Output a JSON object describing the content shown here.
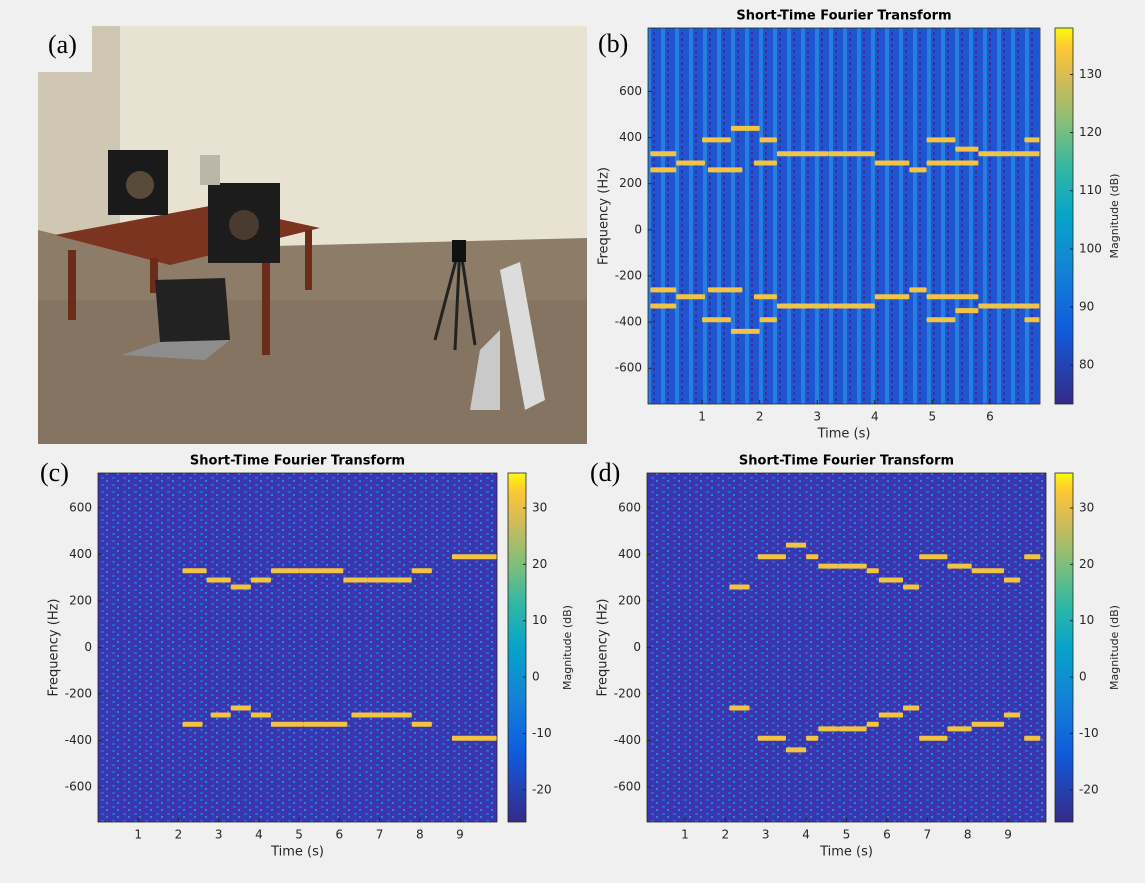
{
  "figure": {
    "panel_a": {
      "label": "(a)"
    }
  },
  "chart_data": [
    {
      "type": "spectrogram",
      "label": "(b)",
      "title": "Short-Time Fourier Transform",
      "xlabel": "Time (s)",
      "ylabel": "Frequency (Hz)",
      "xlim": [
        0.06,
        6.87
      ],
      "ylim": [
        -755,
        875
      ],
      "xticks": [
        1,
        2,
        3,
        4,
        5,
        6
      ],
      "yticks": [
        -600,
        -400,
        -200,
        0,
        200,
        400,
        600
      ],
      "colorbar": {
        "label": "Magnitude (dB)",
        "clim": [
          73.3,
          138
        ],
        "ticks": [
          80,
          90,
          100,
          110,
          120,
          130
        ]
      },
      "tones": [
        [
          0.1,
          0.55,
          330
        ],
        [
          0.1,
          0.55,
          260
        ],
        [
          0.55,
          1.05,
          290
        ],
        [
          1.0,
          1.5,
          390
        ],
        [
          1.5,
          2.0,
          440
        ],
        [
          1.1,
          1.7,
          260
        ],
        [
          1.9,
          2.3,
          290
        ],
        [
          2.0,
          2.3,
          390
        ],
        [
          2.3,
          3.2,
          330
        ],
        [
          3.2,
          4.0,
          330
        ],
        [
          4.0,
          4.6,
          290
        ],
        [
          4.6,
          4.9,
          260
        ],
        [
          4.9,
          5.4,
          390
        ],
        [
          4.9,
          5.8,
          290
        ],
        [
          5.4,
          5.8,
          350
        ],
        [
          5.8,
          6.4,
          330
        ],
        [
          6.4,
          6.87,
          330
        ],
        [
          6.6,
          6.87,
          390
        ],
        [
          0.1,
          0.55,
          -330
        ],
        [
          0.1,
          0.55,
          -260
        ],
        [
          0.55,
          1.05,
          -290
        ],
        [
          1.0,
          1.5,
          -390
        ],
        [
          1.5,
          2.0,
          -440
        ],
        [
          1.1,
          1.7,
          -260
        ],
        [
          1.9,
          2.3,
          -290
        ],
        [
          2.0,
          2.3,
          -390
        ],
        [
          2.3,
          3.2,
          -330
        ],
        [
          3.2,
          4.0,
          -330
        ],
        [
          4.0,
          4.6,
          -290
        ],
        [
          4.6,
          4.9,
          -260
        ],
        [
          4.9,
          5.4,
          -390
        ],
        [
          4.9,
          5.8,
          -290
        ],
        [
          5.4,
          5.8,
          -350
        ],
        [
          5.8,
          6.4,
          -330
        ],
        [
          6.4,
          6.87,
          -330
        ],
        [
          6.6,
          6.87,
          -390
        ]
      ]
    },
    {
      "type": "spectrogram",
      "label": "(c)",
      "title": "Short-Time Fourier Transform",
      "xlabel": "Time (s)",
      "ylabel": "Frequency (Hz)",
      "xlim": [
        0,
        9.92
      ],
      "ylim": [
        -750,
        750
      ],
      "xticks": [
        1,
        2,
        3,
        4,
        5,
        6,
        7,
        8,
        9
      ],
      "yticks": [
        -600,
        -400,
        -200,
        0,
        200,
        400,
        600
      ],
      "colorbar": {
        "label": "Magnitude (dB)",
        "clim": [
          -25.7,
          36.2
        ],
        "ticks": [
          -20,
          -10,
          0,
          10,
          20,
          30
        ]
      },
      "tones": [
        [
          2.1,
          2.7,
          330
        ],
        [
          2.7,
          3.3,
          290
        ],
        [
          3.3,
          3.8,
          260
        ],
        [
          3.8,
          4.3,
          290
        ],
        [
          4.3,
          5.0,
          330
        ],
        [
          5.0,
          6.1,
          330
        ],
        [
          6.1,
          6.7,
          290
        ],
        [
          6.7,
          7.8,
          290
        ],
        [
          7.8,
          8.3,
          330
        ],
        [
          8.8,
          9.92,
          390
        ],
        [
          2.1,
          2.6,
          -330
        ],
        [
          2.8,
          3.3,
          -290
        ],
        [
          3.3,
          3.8,
          -260
        ],
        [
          3.8,
          4.3,
          -290
        ],
        [
          4.3,
          5.1,
          -330
        ],
        [
          5.1,
          6.2,
          -330
        ],
        [
          6.3,
          7.8,
          -290
        ],
        [
          7.8,
          8.3,
          -330
        ],
        [
          8.8,
          9.92,
          -390
        ]
      ]
    },
    {
      "type": "spectrogram",
      "label": "(d)",
      "title": "Short-Time Fourier Transform",
      "xlabel": "Time (s)",
      "ylabel": "Frequency (Hz)",
      "xlim": [
        0.06,
        9.94
      ],
      "ylim": [
        -750,
        750
      ],
      "xticks": [
        1,
        2,
        3,
        4,
        5,
        6,
        7,
        8,
        9
      ],
      "yticks": [
        -600,
        -400,
        -200,
        0,
        200,
        400,
        600
      ],
      "colorbar": {
        "label": "Magnitude (dB)",
        "clim": [
          -25.7,
          36.2
        ],
        "ticks": [
          -20,
          -10,
          0,
          10,
          20,
          30
        ]
      },
      "tones": [
        [
          2.1,
          2.6,
          260
        ],
        [
          2.8,
          3.5,
          390
        ],
        [
          3.5,
          4.0,
          440
        ],
        [
          4.0,
          4.3,
          390
        ],
        [
          4.3,
          4.8,
          350
        ],
        [
          4.8,
          5.5,
          350
        ],
        [
          5.5,
          5.8,
          330
        ],
        [
          5.8,
          6.4,
          290
        ],
        [
          6.4,
          6.8,
          260
        ],
        [
          6.8,
          7.5,
          390
        ],
        [
          7.5,
          8.1,
          350
        ],
        [
          8.1,
          8.9,
          330
        ],
        [
          8.9,
          9.3,
          290
        ],
        [
          9.4,
          9.8,
          390
        ],
        [
          2.1,
          2.6,
          -260
        ],
        [
          2.8,
          3.5,
          -390
        ],
        [
          3.5,
          4.0,
          -440
        ],
        [
          4.0,
          4.3,
          -390
        ],
        [
          4.3,
          4.8,
          -350
        ],
        [
          4.8,
          5.5,
          -350
        ],
        [
          5.5,
          5.8,
          -330
        ],
        [
          5.8,
          6.4,
          -290
        ],
        [
          6.4,
          6.8,
          -260
        ],
        [
          6.8,
          7.5,
          -390
        ],
        [
          7.5,
          8.1,
          -350
        ],
        [
          8.1,
          8.9,
          -330
        ],
        [
          8.9,
          9.3,
          -290
        ],
        [
          9.4,
          9.8,
          -390
        ]
      ]
    }
  ]
}
